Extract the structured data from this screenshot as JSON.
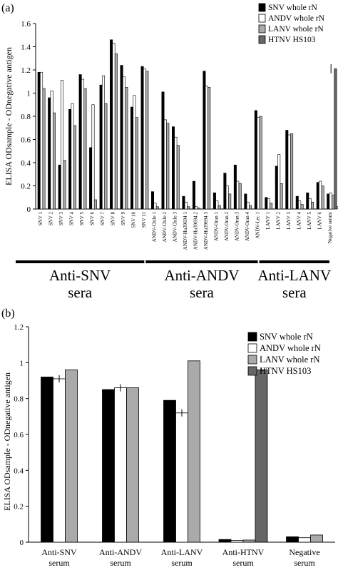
{
  "chart_data": [
    {
      "panel_label": "(a)",
      "type": "bar",
      "ylabel": "ELISA ODsample - ODnegative antigen",
      "xlabel": "",
      "ylim": [
        0,
        1.6
      ],
      "yticks": [
        "0",
        "0.2",
        "0.4",
        "0.6",
        "0.8",
        "1",
        "1.2",
        "1.4",
        "1.6"
      ],
      "legend_position": "top-right",
      "categories": [
        "SNV 1",
        "SNV 2",
        "SNV 3",
        "SNV 4",
        "SNV 5",
        "SNV 6",
        "SNV 7",
        "SNV 8",
        "SNV 9",
        "SNV 10",
        "SNV 11",
        "ANDV-Chile 1",
        "ANDV-Chile 2",
        "ANDV-Chile 3",
        "ANDV-Hu39694 1",
        "ANDV-Hu39694 2",
        "ANDV-Hu39694 3",
        "ANDV-Oran 1",
        "ANDV-Oran 2",
        "ANDV-Oran 3",
        "ANDV-Oran 4",
        "ANDV-Lec 1",
        "LANV 1",
        "LANV 2",
        "LANV 3",
        "LANV 4",
        "LANV 5",
        "LANV 6",
        "Negative serum"
      ],
      "series": [
        {
          "name": "SNV whole rN",
          "color": "#000000",
          "values": [
            1.18,
            0.96,
            0.38,
            0.86,
            1.16,
            0.53,
            1.07,
            1.46,
            1.24,
            0.88,
            1.23,
            0.15,
            1.01,
            0.71,
            0.11,
            0.24,
            1.19,
            0.14,
            0.31,
            0.38,
            0.13,
            0.85,
            0.1,
            0.37,
            0.68,
            0.11,
            0.14,
            0.23,
            0.13
          ]
        },
        {
          "name": "ANDV whole rN",
          "color": "#ffffff",
          "values": [
            1.18,
            1.02,
            1.11,
            0.91,
            1.12,
            0.9,
            1.15,
            1.43,
            1.14,
            0.98,
            1.21,
            0.05,
            0.77,
            0.62,
            0.06,
            0.02,
            1.06,
            0.07,
            0.2,
            0.24,
            0.06,
            0.79,
            0.09,
            0.47,
            0.64,
            0.07,
            0.09,
            0.24,
            0.14
          ]
        },
        {
          "name": "LANV  whole rN",
          "color": "#aaaaaa",
          "values": [
            1.04,
            0.83,
            0.42,
            0.72,
            1.04,
            0.08,
            0.91,
            1.34,
            1.05,
            0.79,
            1.19,
            0.02,
            0.74,
            0.55,
            0.02,
            0.01,
            1.05,
            0.03,
            0.13,
            0.22,
            0.03,
            0.8,
            0.05,
            0.22,
            0.65,
            0.04,
            0.06,
            0.2,
            0.12
          ]
        },
        {
          "name": "HTNV HS103",
          "color": "#666666",
          "values": [
            null,
            null,
            null,
            null,
            null,
            null,
            null,
            null,
            null,
            null,
            null,
            null,
            null,
            null,
            null,
            null,
            null,
            null,
            null,
            null,
            null,
            null,
            null,
            null,
            null,
            null,
            null,
            null,
            1.21
          ]
        }
      ],
      "negative_serum_extra_bars": [
        0.02,
        0.02
      ],
      "groups": [
        {
          "label_line1": "Anti-SNV",
          "label_line2": "sera",
          "from": 0,
          "to": 10
        },
        {
          "label_line1": "Anti-ANDV",
          "label_line2": "sera",
          "from": 11,
          "to": 21
        },
        {
          "label_line1": "Anti-LANV",
          "label_line2": "sera",
          "from": 22,
          "to": 27
        }
      ]
    },
    {
      "panel_label": "(b)",
      "type": "bar",
      "ylabel": "ELISA ODsample - ODnegative antigen",
      "xlabel": "",
      "ylim": [
        0,
        1.2
      ],
      "yticks": [
        "0",
        "0.2",
        "0.4",
        "0.6",
        "0.8",
        "1",
        "1.2"
      ],
      "legend_position": "top-right",
      "categories": [
        [
          "Anti-SNV",
          "serum"
        ],
        [
          "Anti-ANDV",
          "serum"
        ],
        [
          "Anti-LANV",
          "serum"
        ],
        [
          "Anti-HTNV",
          "serum"
        ],
        [
          "Negative",
          "serum"
        ]
      ],
      "series": [
        {
          "name": "SNV whole rN",
          "color": "#000000",
          "values": [
            0.92,
            0.85,
            0.79,
            0.015,
            0.03
          ]
        },
        {
          "name": "ANDV whole rN",
          "color": "#ffffff",
          "values": [
            0.91,
            0.86,
            0.72,
            0.01,
            0.025
          ]
        },
        {
          "name": "LANV whole rN",
          "color": "#aaaaaa",
          "values": [
            0.96,
            0.86,
            1.01,
            0.012,
            0.04
          ]
        },
        {
          "name": "HTNV HS103",
          "color": "#666666",
          "values": [
            null,
            null,
            null,
            0.96,
            null
          ]
        }
      ]
    }
  ]
}
